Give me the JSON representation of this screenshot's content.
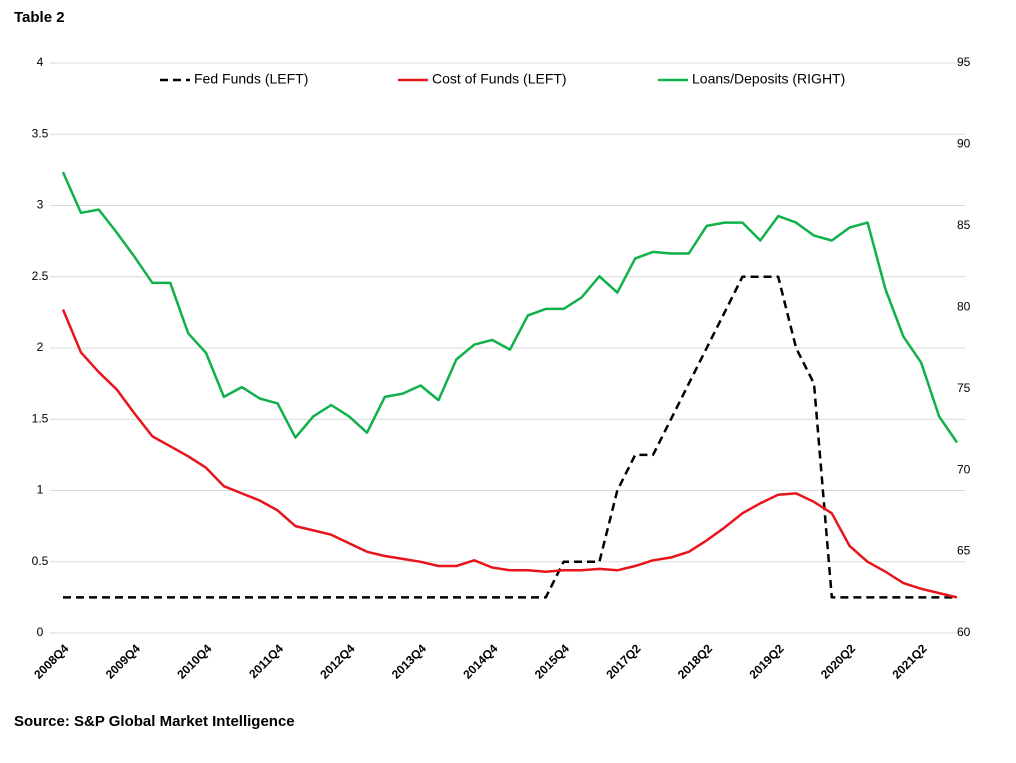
{
  "chart_data": {
    "type": "line",
    "title": "Table 2",
    "source": "Source: S&P Global Market Intelligence",
    "categories": [
      "2008Q4",
      null,
      null,
      null,
      "2009Q4",
      null,
      null,
      null,
      "2010Q4",
      null,
      null,
      null,
      "2011Q4",
      null,
      null,
      null,
      "2012Q4",
      null,
      null,
      null,
      "2013Q4",
      null,
      null,
      null,
      "2014Q4",
      null,
      null,
      null,
      "2015Q4",
      null,
      null,
      null,
      "2017Q2",
      null,
      null,
      null,
      "2018Q2",
      null,
      null,
      null,
      "2019Q2",
      null,
      null,
      null,
      "2020Q2",
      null,
      null,
      null,
      "2021Q2",
      null,
      null
    ],
    "series": [
      {
        "name": "Fed Funds (LEFT)",
        "color": "#000000",
        "dashed": true,
        "values": [
          0.25,
          0.25,
          0.25,
          0.25,
          0.25,
          0.25,
          0.25,
          0.25,
          0.25,
          0.25,
          0.25,
          0.25,
          0.25,
          0.25,
          0.25,
          0.25,
          0.25,
          0.25,
          0.25,
          0.25,
          0.25,
          0.25,
          0.25,
          0.25,
          0.25,
          0.25,
          0.25,
          0.25,
          0.5,
          0.5,
          0.5,
          1.0,
          1.25,
          1.25,
          1.5,
          1.75,
          2.0,
          2.25,
          2.5,
          2.5,
          2.5,
          2.0,
          1.75,
          0.25,
          0.25,
          0.25,
          0.25,
          0.25,
          0.25,
          0.25,
          0.25
        ]
      },
      {
        "name": "Cost of Funds (LEFT)",
        "color": "#e8141b",
        "values": [
          2.27,
          1.97,
          1.83,
          1.71,
          1.54,
          1.38,
          1.31,
          1.24,
          1.16,
          1.03,
          0.98,
          0.93,
          0.86,
          0.75,
          0.72,
          0.69,
          0.63,
          0.57,
          0.54,
          0.52,
          0.5,
          0.47,
          0.47,
          0.51,
          0.46,
          0.44,
          0.44,
          0.43,
          0.44,
          0.44,
          0.45,
          0.44,
          0.47,
          0.51,
          0.53,
          0.57,
          0.65,
          0.74,
          0.84,
          0.91,
          0.97,
          0.98,
          0.92,
          0.84,
          0.61,
          0.5,
          0.43,
          0.35,
          0.31,
          0.28,
          0.25
        ]
      },
      {
        "name": "Loans/Deposits (RIGHT)",
        "color": "#10b04a",
        "axis": "y2",
        "values": [
          88.3,
          85.8,
          86.0,
          84.6,
          83.1,
          81.5,
          81.5,
          78.4,
          77.2,
          74.5,
          75.1,
          74.4,
          74.1,
          72.0,
          73.3,
          74.0,
          73.3,
          72.3,
          74.5,
          74.7,
          75.2,
          74.3,
          76.8,
          77.7,
          78.0,
          77.4,
          79.5,
          79.9,
          79.9,
          80.6,
          81.9,
          80.9,
          83.0,
          83.4,
          83.3,
          83.3,
          85.0,
          85.2,
          85.2,
          84.1,
          85.6,
          85.2,
          84.4,
          84.1,
          84.9,
          85.2,
          81.1,
          78.2,
          76.6,
          73.3,
          71.7
        ]
      }
    ],
    "ylim": [
      0,
      4
    ],
    "yticks": [
      0,
      0.5,
      1,
      1.5,
      2,
      2.5,
      3,
      3.5,
      4
    ],
    "y2lim": [
      60,
      95
    ],
    "y2ticks": [
      60,
      65,
      70,
      75,
      80,
      85,
      90,
      95
    ],
    "grid": true
  }
}
